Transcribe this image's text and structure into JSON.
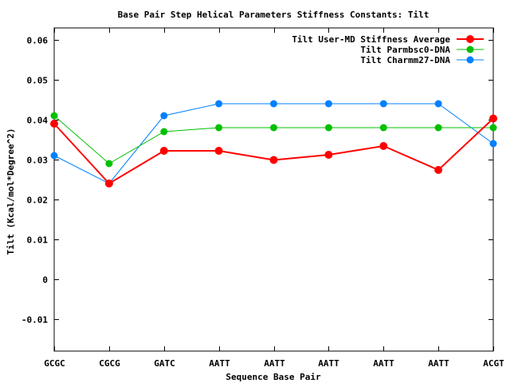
{
  "chart_data": {
    "type": "line",
    "title": "Base Pair Step Helical Parameters Stiffness Constants: Tilt",
    "xlabel": "Sequence Base Pair",
    "ylabel": "Tilt (Kcal/mol*Degree^2)",
    "categories": [
      "GCGC",
      "CGCG",
      "GATC",
      "AATT",
      "AATT",
      "AATT",
      "AATT",
      "AATT",
      "ACGT"
    ],
    "ylim": [
      -0.018,
      0.063
    ],
    "yticks": [
      -0.01,
      0,
      0.01,
      0.02,
      0.03,
      0.04,
      0.05,
      0.06
    ],
    "ytick_labels": [
      "-0.01",
      "0",
      "0.01",
      "0.02",
      "0.03",
      "0.04",
      "0.05",
      "0.06"
    ],
    "grid": false,
    "legend_position": "top-right",
    "series": [
      {
        "name": "Tilt User-MD Stiffness Average",
        "color": "#ff0000",
        "values": [
          0.039,
          0.024,
          0.0322,
          0.0322,
          0.0299,
          0.0312,
          0.0334,
          0.0274,
          0.0403
        ]
      },
      {
        "name": "Tilt Parmbsc0-DNA",
        "color": "#00c000",
        "values": [
          0.041,
          0.029,
          0.037,
          0.038,
          0.038,
          0.038,
          0.038,
          0.038,
          0.038
        ]
      },
      {
        "name": "Tilt Charmm27-DNA",
        "color": "#0080ff",
        "values": [
          0.031,
          0.024,
          0.041,
          0.044,
          0.044,
          0.044,
          0.044,
          0.044,
          0.034
        ]
      }
    ]
  }
}
